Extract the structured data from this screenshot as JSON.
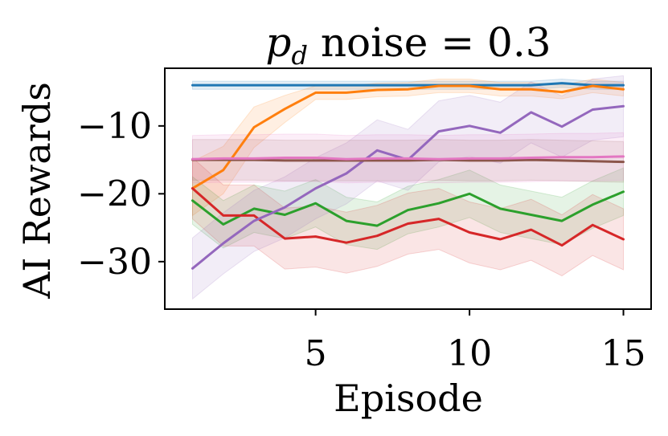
{
  "chart_data": {
    "type": "line",
    "title_var": "p",
    "title_sub": "d",
    "title_rest": " noise = 0.3",
    "xlabel": "Episode",
    "ylabel": "AI Rewards",
    "xlim": [
      0.1,
      15.9
    ],
    "ylim": [
      -37,
      -1.5
    ],
    "xticks": [
      5,
      10,
      15
    ],
    "xtick_labels": [
      "5",
      "10",
      "15"
    ],
    "yticks": [
      -10,
      -20,
      -30
    ],
    "ytick_labels": [
      "−10",
      "−20",
      "−30"
    ],
    "grid": false,
    "x": [
      1,
      2,
      3,
      4,
      5,
      6,
      7,
      8,
      9,
      10,
      11,
      12,
      13,
      14,
      15
    ],
    "series": [
      {
        "color": "#1f77b4",
        "values": [
          -4,
          -4,
          -4,
          -4,
          -4,
          -4,
          -4,
          -4,
          -4,
          -4,
          -4,
          -4,
          -3.7,
          -4,
          -4
        ],
        "band": 0.6
      },
      {
        "color": "#ff7f0e",
        "values": [
          -19.2,
          -16.5,
          -10.2,
          -7.5,
          -5.1,
          -5.1,
          -4.7,
          -4.6,
          -4.1,
          -4.1,
          -4.6,
          -4.6,
          -5.0,
          -4.1,
          -4.6
        ],
        "band": [
          4,
          3.5,
          3,
          2,
          1,
          1,
          1,
          1,
          1,
          1,
          1,
          1,
          1,
          1,
          1
        ]
      },
      {
        "color": "#2ca02c",
        "values": [
          -21,
          -24.5,
          -22.2,
          -23.1,
          -21.4,
          -24,
          -24.7,
          -22.4,
          -21.4,
          -20,
          -22.2,
          -23.1,
          -24,
          -21.6,
          -19.7
        ],
        "band": 3.5
      },
      {
        "color": "#d62728",
        "values": [
          -19.2,
          -23.2,
          -23.2,
          -26.6,
          -26.3,
          -27.2,
          -26.2,
          -24.4,
          -23.7,
          -25.7,
          -26.7,
          -25.3,
          -27.6,
          -24.6,
          -26.7
        ],
        "band": 4.5
      },
      {
        "color": "#9467bd",
        "values": [
          -31,
          -27.3,
          -24,
          -22,
          -19.2,
          -17,
          -13.6,
          -15,
          -10.8,
          -10,
          -11,
          -8,
          -10.1,
          -7.6,
          -7.1
        ],
        "band": 4.5
      },
      {
        "color": "#8c564b",
        "values": [
          -15,
          -15,
          -15,
          -15.1,
          -15.1,
          -15.1,
          -15.1,
          -15.1,
          -15,
          -15.1,
          -15.1,
          -15,
          -15.1,
          -15.2,
          -15.3
        ],
        "band": 3
      },
      {
        "color": "#e377c2",
        "values": [
          -14.9,
          -14.8,
          -14.8,
          -14.7,
          -14.7,
          -14.9,
          -14.8,
          -14.8,
          -14.9,
          -14.8,
          -14.8,
          -14.7,
          -14.6,
          -14.6,
          -14.5
        ],
        "band": 3.5
      }
    ]
  }
}
